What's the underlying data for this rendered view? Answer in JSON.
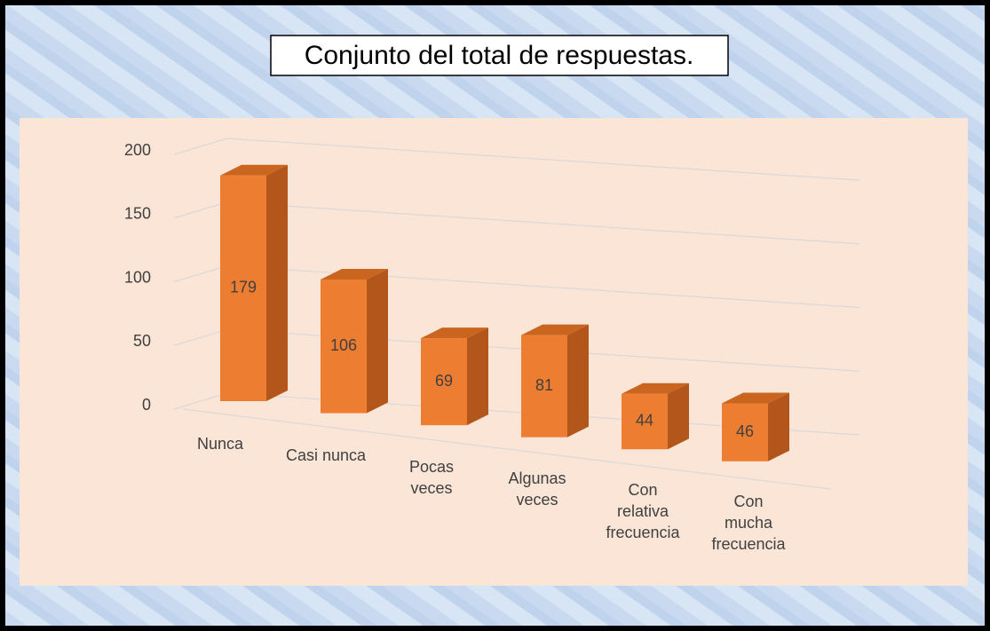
{
  "chart_data": {
    "type": "bar3d",
    "title": "Conjunto del total de respuestas.",
    "categories": [
      "Nunca",
      "Casi nunca",
      "Pocas veces",
      "Algunas veces",
      "Con relativa frecuencia",
      "Con mucha frecuencia"
    ],
    "values": [
      179,
      106,
      69,
      81,
      44,
      46
    ],
    "color": "#ed7d31",
    "ylim": [
      0,
      200
    ],
    "yticks": [
      0,
      50,
      100,
      150,
      200
    ],
    "grid": true
  }
}
